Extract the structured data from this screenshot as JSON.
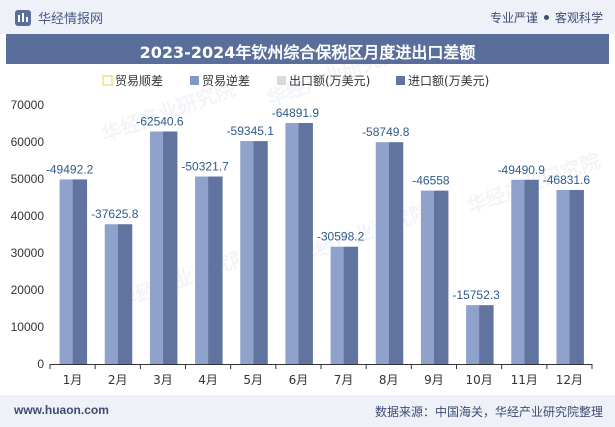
{
  "header": {
    "brand": "华经情报网",
    "tagline_left": "专业严谨",
    "tagline_right": "客观科学"
  },
  "chart_data": {
    "type": "bar",
    "title": "2023-2024年钦州综合保税区月度进出口差额",
    "categories": [
      "1月",
      "2月",
      "3月",
      "4月",
      "5月",
      "6月",
      "7月",
      "8月",
      "9月",
      "10月",
      "11月",
      "12月"
    ],
    "series": [
      {
        "name": "贸易顺差",
        "color": "#f3d36b",
        "values": [
          0,
          0,
          0,
          0,
          0,
          0,
          0,
          0,
          0,
          0,
          0,
          0
        ]
      },
      {
        "name": "贸易逆差",
        "color": "#7f9ac6",
        "values": [
          -49492.2,
          -37625.8,
          -62540.6,
          -50321.7,
          -59345.1,
          -64891.9,
          -30598.2,
          -58749.8,
          -46558,
          -15752.3,
          -49490.9,
          -46831.6
        ]
      },
      {
        "name": "出口额(万美元)",
        "color": "#d9d9d9",
        "values": [
          400,
          150,
          300,
          350,
          900,
          250,
          1100,
          1200,
          300,
          150,
          300,
          200
        ]
      },
      {
        "name": "进口额(万美元)",
        "color": "#61739f",
        "values": [
          49892,
          37776,
          62841,
          50672,
          60245,
          65142,
          31698,
          59950,
          46858,
          15902,
          49791,
          47032
        ]
      }
    ],
    "data_labels": [
      "-49492.2",
      "-37625.8",
      "-62540.6",
      "-50321.7",
      "-59345.1",
      "-64891.9",
      "-30598.2",
      "-58749.8",
      "-46558",
      "-15752.3",
      "-49490.9",
      "-46831.6"
    ],
    "ylim": [
      0,
      70000
    ],
    "yticks": [
      "0",
      "10000",
      "20000",
      "30000",
      "40000",
      "50000",
      "60000",
      "70000"
    ],
    "grid": false,
    "legend_position": "top",
    "label_color": "#2f5b8a"
  },
  "footer": {
    "url": "www.huaon.com",
    "source": "数据来源：中国海关，华经产业研究院整理"
  }
}
